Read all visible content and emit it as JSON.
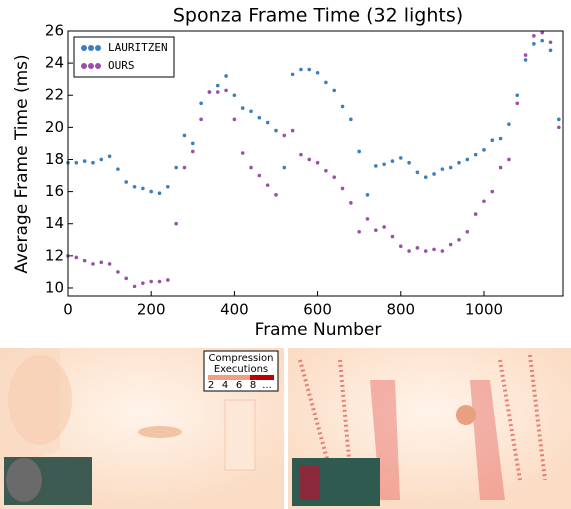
{
  "chart_data": {
    "type": "scatter",
    "title": "Sponza Frame Time (32 lights)",
    "x_label": "Frame Number",
    "y_label": "Average Frame Time (ms)",
    "x": [
      0,
      20,
      40,
      60,
      80,
      100,
      120,
      140,
      160,
      180,
      200,
      220,
      240,
      260,
      280,
      300,
      320,
      340,
      360,
      380,
      400,
      420,
      440,
      460,
      480,
      500,
      520,
      540,
      560,
      580,
      600,
      620,
      640,
      660,
      680,
      700,
      720,
      740,
      760,
      780,
      800,
      820,
      840,
      860,
      880,
      900,
      920,
      940,
      960,
      980,
      1000,
      1020,
      1040,
      1060,
      1080,
      1100,
      1120,
      1140,
      1160,
      1180
    ],
    "series": [
      {
        "name": "LAURITZEN",
        "color": "#3a7fbd",
        "values": [
          17.8,
          17.8,
          17.9,
          17.8,
          18.0,
          18.2,
          17.4,
          16.6,
          16.3,
          16.2,
          16.0,
          15.9,
          16.3,
          17.5,
          19.5,
          19.0,
          21.5,
          22.2,
          22.6,
          23.2,
          22.0,
          21.2,
          21.0,
          20.6,
          20.3,
          19.8,
          17.5,
          23.3,
          23.6,
          23.6,
          23.4,
          22.8,
          22.3,
          21.3,
          20.5,
          18.5,
          15.8,
          17.6,
          17.7,
          17.9,
          18.1,
          17.8,
          17.2,
          16.9,
          17.1,
          17.4,
          17.5,
          17.8,
          18.0,
          18.3,
          18.6,
          19.2,
          19.3,
          20.2,
          22.0,
          24.2,
          25.2,
          25.4,
          24.8,
          20.5
        ]
      },
      {
        "name": "OURS",
        "color": "#9b4fa8",
        "values": [
          12.0,
          11.9,
          11.7,
          11.5,
          11.6,
          11.5,
          11.0,
          10.6,
          10.1,
          10.3,
          10.4,
          10.4,
          10.5,
          14.0,
          17.5,
          18.5,
          20.5,
          22.2,
          22.2,
          22.3,
          20.5,
          18.4,
          17.5,
          17.0,
          16.4,
          15.8,
          19.5,
          19.8,
          18.3,
          18.0,
          17.8,
          17.3,
          16.9,
          16.2,
          15.3,
          13.5,
          14.3,
          13.6,
          13.8,
          13.2,
          12.6,
          12.3,
          12.5,
          12.3,
          12.4,
          12.3,
          12.7,
          13.0,
          13.5,
          14.6,
          15.4,
          16.0,
          17.5,
          18.0,
          21.5,
          24.5,
          25.7,
          25.9,
          25.3,
          20.0
        ]
      }
    ],
    "xlim": [
      0,
      1190
    ],
    "ylim": [
      9.5,
      26
    ],
    "xticks": [
      0,
      200,
      400,
      600,
      800,
      1000
    ],
    "yticks": [
      10,
      12,
      14,
      16,
      18,
      20,
      22,
      24,
      26
    ],
    "legend": "upper-left"
  },
  "figure": {
    "colorbar_title": [
      "Compression",
      "Executions"
    ],
    "colorbar_labels": [
      "2",
      "4",
      "6",
      "8",
      "..."
    ]
  }
}
